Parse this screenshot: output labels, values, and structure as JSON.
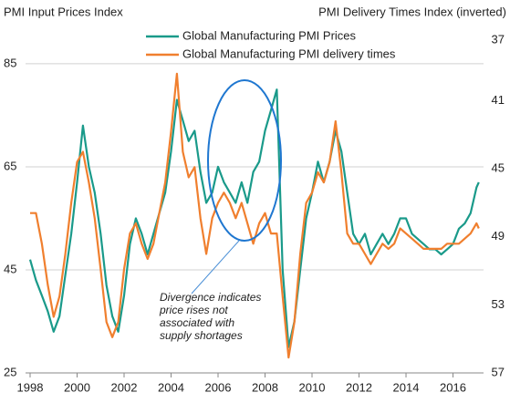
{
  "chart_data": {
    "type": "line",
    "ylabel": "PMI Input Prices Index",
    "y2label": "PMI Delivery Times Index (inverted)",
    "annotation": [
      "Divergence indicates",
      "price rises not",
      "associated with",
      "supply shortages"
    ],
    "x": [
      1998,
      1998.25,
      1998.5,
      1998.75,
      1999,
      1999.25,
      1999.5,
      1999.75,
      2000,
      2000.25,
      2000.5,
      2000.75,
      2001,
      2001.25,
      2001.5,
      2001.75,
      2002,
      2002.25,
      2002.5,
      2002.75,
      2003,
      2003.25,
      2003.5,
      2003.75,
      2004,
      2004.25,
      2004.5,
      2004.75,
      2005,
      2005.25,
      2005.5,
      2005.75,
      2006,
      2006.25,
      2006.5,
      2006.75,
      2007,
      2007.25,
      2007.5,
      2007.75,
      2008,
      2008.25,
      2008.5,
      2008.75,
      2009,
      2009.25,
      2009.5,
      2009.75,
      2010,
      2010.25,
      2010.5,
      2010.75,
      2011,
      2011.25,
      2011.5,
      2011.75,
      2012,
      2012.25,
      2012.5,
      2012.75,
      2013,
      2013.25,
      2013.5,
      2013.75,
      2014,
      2014.25,
      2014.5,
      2014.75,
      2015,
      2015.25,
      2015.5,
      2015.75,
      2016,
      2016.25,
      2016.5,
      2016.75,
      2017,
      2017.1
    ],
    "series": [
      {
        "name": "Global Manufacturing PMI Prices",
        "color": "#1a9a8a",
        "values": [
          47,
          43,
          40,
          37,
          33,
          36,
          44,
          52,
          62,
          73,
          65,
          60,
          52,
          42,
          36,
          33,
          40,
          50,
          55,
          52,
          48,
          52,
          56,
          60,
          68,
          78,
          74,
          70,
          72,
          64,
          58,
          60,
          65,
          62,
          60,
          58,
          62,
          58,
          64,
          66,
          72,
          76,
          80,
          45,
          30,
          35,
          45,
          55,
          60,
          66,
          62,
          66,
          72,
          68,
          60,
          52,
          50,
          52,
          48,
          50,
          52,
          50,
          52,
          55,
          55,
          52,
          51,
          50,
          49,
          49,
          48,
          49,
          50,
          53,
          54,
          56,
          61,
          62
        ]
      },
      {
        "name": "Global Manufacturing PMI delivery times",
        "color": "#f07f2e",
        "axis": "y2",
        "values": [
          47.6,
          47.6,
          49.4,
          51.8,
          53.7,
          52.5,
          50.0,
          47.0,
          44.6,
          44.0,
          45.8,
          47.9,
          50.9,
          54.0,
          54.9,
          54.0,
          50.9,
          48.8,
          48.2,
          49.4,
          50.3,
          49.4,
          47.6,
          45.8,
          42.8,
          39.4,
          44.0,
          45.5,
          44.9,
          47.9,
          50.0,
          47.9,
          47.0,
          46.4,
          47.0,
          47.9,
          47.0,
          48.2,
          49.4,
          48.2,
          47.6,
          48.8,
          48.8,
          52.5,
          56.1,
          54.0,
          50.0,
          47.0,
          46.4,
          45.2,
          45.8,
          44.6,
          42.2,
          45.2,
          48.8,
          49.4,
          49.4,
          50.0,
          50.6,
          50.0,
          49.4,
          49.7,
          49.4,
          48.5,
          48.8,
          49.1,
          49.4,
          49.7,
          49.7,
          49.7,
          49.7,
          49.4,
          49.4,
          49.4,
          49.1,
          48.8,
          48.2,
          48.5
        ]
      }
    ],
    "xlim": [
      1998,
      2017.3
    ],
    "xticks": [
      1998,
      2000,
      2002,
      2004,
      2006,
      2008,
      2010,
      2012,
      2014,
      2016
    ],
    "ylim": [
      25,
      91
    ],
    "yticks": [
      25,
      45,
      65,
      85
    ],
    "y2lim": [
      57,
      37
    ],
    "y2ticks": [
      37,
      41,
      45,
      49,
      53,
      57
    ],
    "grid": true
  }
}
